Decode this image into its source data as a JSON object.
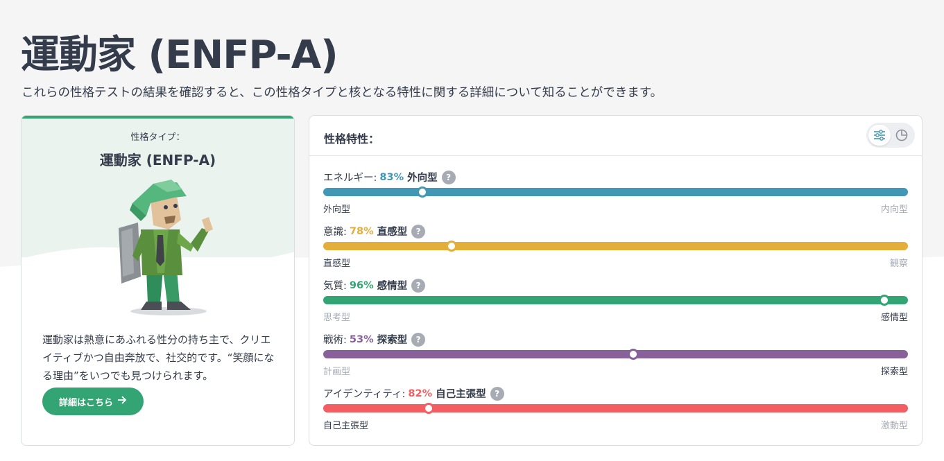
{
  "page": {
    "title": "運動家 (ENFP-A)",
    "subtitle": "これらの性格テストの結果を確認すると、この性格タイプと核となる特性に関する詳細について知ることができます。"
  },
  "type_card": {
    "label": "性格タイプ：",
    "name": "運動家 (ENFP-A)",
    "description": "運動家は熱意にあふれる性分の持ち主で、クリエイティブかつ自由奔放で、社交的です。“笑顔になる理由”をいつでも見つけられます。",
    "more_button": "詳細はこちら",
    "accent": "#33a474"
  },
  "traits_panel": {
    "title": "性格特性：",
    "view_toggle": [
      "sliders-icon",
      "pie-chart-icon"
    ],
    "traits": [
      {
        "name": "エネルギー:",
        "percent": "83%",
        "side": "外向型",
        "left": "外向型",
        "right": "内向型",
        "value": 0.17,
        "strong": "left",
        "color": "#4298b4"
      },
      {
        "name": "意識:",
        "percent": "78%",
        "side": "直感型",
        "left": "直感型",
        "right": "観察",
        "value": 0.22,
        "strong": "left",
        "color": "#e4ae3a"
      },
      {
        "name": "気質:",
        "percent": "96%",
        "side": "感情型",
        "left": "思考型",
        "right": "感情型",
        "value": 0.96,
        "strong": "right",
        "color": "#33a474"
      },
      {
        "name": "戦術:",
        "percent": "53%",
        "side": "探索型",
        "left": "計画型",
        "right": "探索型",
        "value": 0.53,
        "strong": "right",
        "color": "#88619a"
      },
      {
        "name": "アイデンティティ:",
        "percent": "82%",
        "side": "自己主張型",
        "left": "自己主張型",
        "right": "激動型",
        "value": 0.18,
        "strong": "left",
        "color": "#f25e62"
      }
    ]
  }
}
